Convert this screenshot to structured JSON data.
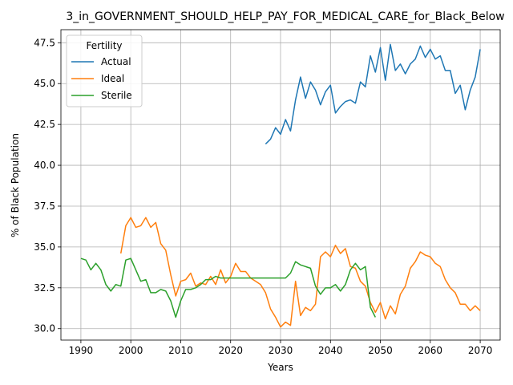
{
  "chart_data": {
    "type": "line",
    "title": "3_in_GOVERNMENT_SHOULD_HELP_PAY_FOR_MEDICAL_CARE_for_Black_Below",
    "xlabel": "Years",
    "ylabel": "% of Black Population",
    "xlim": [
      1986,
      2074
    ],
    "ylim": [
      29.3,
      48.3
    ],
    "xticks": [
      1990,
      2000,
      2010,
      2020,
      2030,
      2040,
      2050,
      2060,
      2070
    ],
    "xtick_labels": [
      "1990",
      "2000",
      "2010",
      "2020",
      "2030",
      "2040",
      "2050",
      "2060",
      "2070"
    ],
    "yticks": [
      30.0,
      32.5,
      35.0,
      37.5,
      40.0,
      42.5,
      45.0,
      47.5
    ],
    "ytick_labels": [
      "30.0",
      "32.5",
      "35.0",
      "37.5",
      "40.0",
      "42.5",
      "45.0",
      "47.5"
    ],
    "grid": true,
    "legend": {
      "title": "Fertility",
      "placement": "top-left"
    },
    "series": [
      {
        "name": "Actual",
        "color": "#1f77b4",
        "x": [
          2027,
          2028,
          2029,
          2030,
          2031,
          2032,
          2033,
          2034,
          2035,
          2036,
          2037,
          2038,
          2039,
          2040,
          2041,
          2042,
          2043,
          2044,
          2045,
          2046,
          2047,
          2048,
          2049,
          2050,
          2051,
          2052,
          2053,
          2054,
          2055,
          2056,
          2057,
          2058,
          2059,
          2060,
          2061,
          2062,
          2063,
          2064,
          2065,
          2066,
          2067,
          2068,
          2069,
          2070
        ],
        "y": [
          41.3,
          41.6,
          42.3,
          41.9,
          42.8,
          42.1,
          44.0,
          45.4,
          44.1,
          45.1,
          44.6,
          43.7,
          44.5,
          44.9,
          43.2,
          43.6,
          43.9,
          44.0,
          43.8,
          45.1,
          44.8,
          46.7,
          45.7,
          47.2,
          45.2,
          47.4,
          45.8,
          46.2,
          45.6,
          46.2,
          46.5,
          47.3,
          46.6,
          47.1,
          46.5,
          46.7,
          45.8,
          45.8,
          44.4,
          44.9,
          43.4,
          44.6,
          45.4,
          47.1
        ]
      },
      {
        "name": "Ideal",
        "color": "#ff7f0e",
        "x": [
          1998,
          1999,
          2000,
          2001,
          2002,
          2003,
          2004,
          2005,
          2006,
          2007,
          2008,
          2009,
          2010,
          2011,
          2012,
          2013,
          2014,
          2015,
          2016,
          2017,
          2018,
          2019,
          2020,
          2021,
          2022,
          2023,
          2024,
          2025,
          2026,
          2027,
          2028,
          2029,
          2030,
          2031,
          2032,
          2033,
          2034,
          2035,
          2036,
          2037,
          2038,
          2039,
          2040,
          2041,
          2042,
          2043,
          2044,
          2045,
          2046,
          2047,
          2048,
          2049,
          2050,
          2051,
          2052,
          2053,
          2054,
          2055,
          2056,
          2057,
          2058,
          2059,
          2060,
          2061,
          2062,
          2063,
          2064,
          2065,
          2066,
          2067,
          2068,
          2069,
          2070
        ],
        "y": [
          34.6,
          36.3,
          36.8,
          36.2,
          36.3,
          36.8,
          36.2,
          36.5,
          35.2,
          34.8,
          33.3,
          32.0,
          32.9,
          33.0,
          33.4,
          32.6,
          32.8,
          32.7,
          33.2,
          32.7,
          33.6,
          32.8,
          33.2,
          34.0,
          33.5,
          33.5,
          33.1,
          32.9,
          32.7,
          32.2,
          31.2,
          30.7,
          30.1,
          30.4,
          30.2,
          32.9,
          30.8,
          31.3,
          31.1,
          31.5,
          34.4,
          34.7,
          34.4,
          35.1,
          34.6,
          34.9,
          33.8,
          33.7,
          32.9,
          32.6,
          31.6,
          31.0,
          31.6,
          30.6,
          31.4,
          30.9,
          32.1,
          32.6,
          33.7,
          34.1,
          34.7,
          34.5,
          34.4,
          34.0,
          33.8,
          33.0,
          32.5,
          32.2,
          31.5,
          31.5,
          31.1,
          31.4,
          31.1
        ]
      },
      {
        "name": "Sterile",
        "color": "#2ca02c",
        "x": [
          1990,
          1991,
          1992,
          1993,
          1994,
          1995,
          1996,
          1997,
          1998,
          1999,
          2000,
          2001,
          2002,
          2003,
          2004,
          2005,
          2006,
          2007,
          2008,
          2009,
          2010,
          2011,
          2012,
          2013,
          2014,
          2015,
          2016,
          2017,
          2018,
          2019,
          2020,
          2021,
          2022,
          2023,
          2024,
          2025,
          2026,
          2027,
          2028,
          2029,
          2030,
          2031,
          2032,
          2033,
          2034,
          2035,
          2036,
          2037,
          2038,
          2039,
          2040,
          2041,
          2042,
          2043,
          2044,
          2045,
          2046,
          2047,
          2048,
          2049
        ],
        "y": [
          34.3,
          34.2,
          33.6,
          34.0,
          33.6,
          32.7,
          32.3,
          32.7,
          32.6,
          34.2,
          34.3,
          33.6,
          32.9,
          33.0,
          32.2,
          32.2,
          32.4,
          32.3,
          31.7,
          30.7,
          31.7,
          32.4,
          32.4,
          32.5,
          32.7,
          33.0,
          33.0,
          33.2,
          33.1,
          33.1,
          33.1,
          33.1,
          33.1,
          33.1,
          33.1,
          33.1,
          33.1,
          33.1,
          33.1,
          33.1,
          33.1,
          33.1,
          33.4,
          34.1,
          33.9,
          33.8,
          33.7,
          32.6,
          32.1,
          32.5,
          32.5,
          32.7,
          32.3,
          32.7,
          33.6,
          34.0,
          33.6,
          33.8,
          31.3,
          30.7
        ]
      }
    ]
  }
}
